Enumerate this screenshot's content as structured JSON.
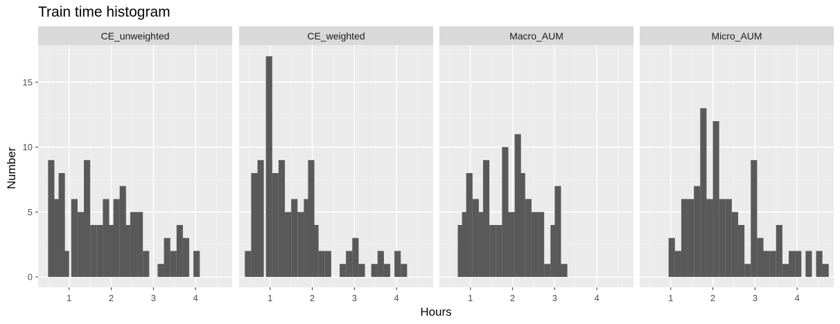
{
  "chart_data": {
    "type": "histogram",
    "title": "Train time histogram",
    "xlabel": "Hours",
    "ylabel": "Number",
    "x_ticks": [
      1,
      2,
      3,
      4
    ],
    "y_ticks": [
      0,
      5,
      10,
      15
    ],
    "xlim": [
      0.35,
      4.95
    ],
    "ylim": [
      0,
      18
    ],
    "bin_width": 0.15,
    "grid": true,
    "bar_color": "#595959",
    "panel_background": "#ebebeb",
    "strip_background": "#d9d9d9",
    "panels": [
      {
        "name": "CE_unweighted",
        "bins": [
          {
            "x": 0.575,
            "count": 9
          },
          {
            "x": 0.725,
            "count": 6
          },
          {
            "x": 0.825,
            "count": 8
          },
          {
            "x": 0.925,
            "count": 2
          },
          {
            "x": 1.125,
            "count": 6
          },
          {
            "x": 1.275,
            "count": 5
          },
          {
            "x": 1.425,
            "count": 9
          },
          {
            "x": 1.575,
            "count": 4
          },
          {
            "x": 1.725,
            "count": 4
          },
          {
            "x": 1.875,
            "count": 6
          },
          {
            "x": 2.025,
            "count": 4
          },
          {
            "x": 2.125,
            "count": 6
          },
          {
            "x": 2.275,
            "count": 7
          },
          {
            "x": 2.375,
            "count": 4
          },
          {
            "x": 2.525,
            "count": 5
          },
          {
            "x": 2.675,
            "count": 5
          },
          {
            "x": 2.825,
            "count": 2
          },
          {
            "x": 3.175,
            "count": 1
          },
          {
            "x": 3.325,
            "count": 3
          },
          {
            "x": 3.475,
            "count": 2
          },
          {
            "x": 3.625,
            "count": 4
          },
          {
            "x": 3.775,
            "count": 3
          },
          {
            "x": 4.025,
            "count": 2
          }
        ]
      },
      {
        "name": "CE_weighted",
        "bins": [
          {
            "x": 0.475,
            "count": 2
          },
          {
            "x": 0.625,
            "count": 8
          },
          {
            "x": 0.775,
            "count": 9
          },
          {
            "x": 0.975,
            "count": 17
          },
          {
            "x": 1.125,
            "count": 8
          },
          {
            "x": 1.275,
            "count": 9
          },
          {
            "x": 1.425,
            "count": 5
          },
          {
            "x": 1.575,
            "count": 6
          },
          {
            "x": 1.725,
            "count": 5
          },
          {
            "x": 1.875,
            "count": 6
          },
          {
            "x": 1.975,
            "count": 9
          },
          {
            "x": 2.075,
            "count": 4
          },
          {
            "x": 2.225,
            "count": 2
          },
          {
            "x": 2.375,
            "count": 2
          },
          {
            "x": 2.725,
            "count": 1
          },
          {
            "x": 2.875,
            "count": 2
          },
          {
            "x": 3.025,
            "count": 3
          },
          {
            "x": 3.175,
            "count": 1
          },
          {
            "x": 3.475,
            "count": 1
          },
          {
            "x": 3.625,
            "count": 2
          },
          {
            "x": 3.775,
            "count": 1
          },
          {
            "x": 4.025,
            "count": 2
          },
          {
            "x": 4.175,
            "count": 1
          }
        ]
      },
      {
        "name": "Macro_AUM",
        "bins": [
          {
            "x": 0.775,
            "count": 4
          },
          {
            "x": 0.875,
            "count": 5
          },
          {
            "x": 0.975,
            "count": 8
          },
          {
            "x": 1.125,
            "count": 6
          },
          {
            "x": 1.275,
            "count": 5
          },
          {
            "x": 1.375,
            "count": 9
          },
          {
            "x": 1.525,
            "count": 4
          },
          {
            "x": 1.675,
            "count": 4
          },
          {
            "x": 1.825,
            "count": 10
          },
          {
            "x": 1.975,
            "count": 5
          },
          {
            "x": 2.125,
            "count": 11
          },
          {
            "x": 2.225,
            "count": 8
          },
          {
            "x": 2.375,
            "count": 6
          },
          {
            "x": 2.525,
            "count": 5
          },
          {
            "x": 2.675,
            "count": 5
          },
          {
            "x": 2.825,
            "count": 1
          },
          {
            "x": 2.975,
            "count": 4
          },
          {
            "x": 3.075,
            "count": 7
          },
          {
            "x": 3.225,
            "count": 1
          }
        ]
      },
      {
        "name": "Micro_AUM",
        "bins": [
          {
            "x": 1.025,
            "count": 3
          },
          {
            "x": 1.175,
            "count": 2
          },
          {
            "x": 1.325,
            "count": 6
          },
          {
            "x": 1.475,
            "count": 6
          },
          {
            "x": 1.625,
            "count": 7
          },
          {
            "x": 1.775,
            "count": 13
          },
          {
            "x": 1.925,
            "count": 6
          },
          {
            "x": 2.075,
            "count": 12
          },
          {
            "x": 2.225,
            "count": 6
          },
          {
            "x": 2.375,
            "count": 6
          },
          {
            "x": 2.525,
            "count": 5
          },
          {
            "x": 2.675,
            "count": 4
          },
          {
            "x": 2.825,
            "count": 1
          },
          {
            "x": 2.975,
            "count": 9
          },
          {
            "x": 3.125,
            "count": 3
          },
          {
            "x": 3.275,
            "count": 2
          },
          {
            "x": 3.425,
            "count": 2
          },
          {
            "x": 3.575,
            "count": 4
          },
          {
            "x": 3.725,
            "count": 1
          },
          {
            "x": 3.875,
            "count": 2
          },
          {
            "x": 4.025,
            "count": 2
          },
          {
            "x": 4.175,
            "count": 0
          },
          {
            "x": 4.275,
            "count": 2
          },
          {
            "x": 4.475,
            "count": 0
          },
          {
            "x": 4.525,
            "count": 2
          },
          {
            "x": 4.675,
            "count": 1
          }
        ]
      }
    ]
  }
}
